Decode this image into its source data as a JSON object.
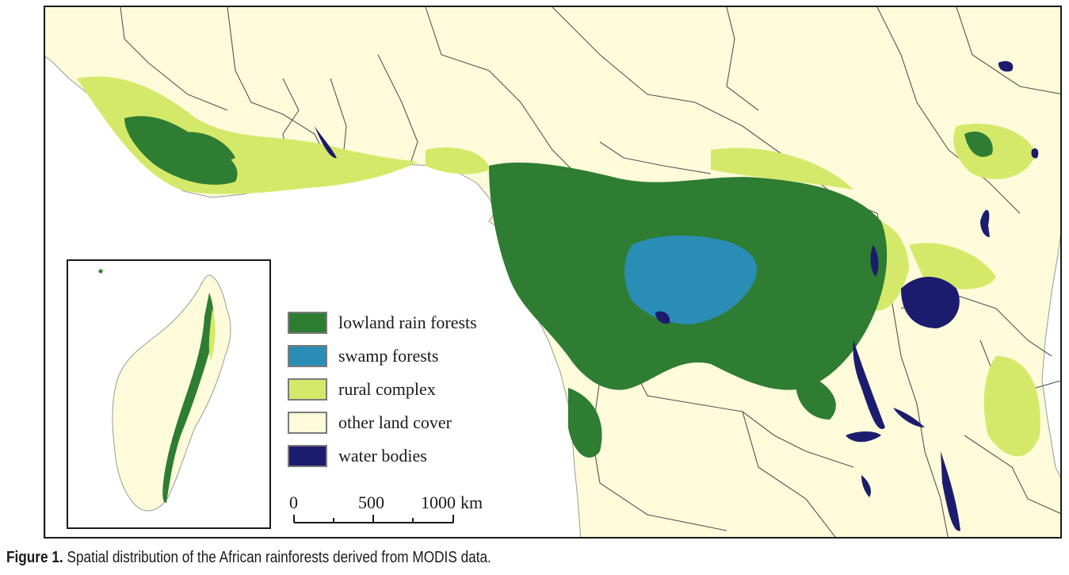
{
  "legend": {
    "items": [
      {
        "label": "lowland rain forests",
        "color": "#2e7d32"
      },
      {
        "label": "swamp forests",
        "color": "#2a8db5"
      },
      {
        "label": "rural complex",
        "color": "#d4e96a"
      },
      {
        "label": "other land cover",
        "color": "#fdfbd9"
      },
      {
        "label": "water bodies",
        "color": "#1c1c6e"
      }
    ]
  },
  "scalebar": {
    "ticks": [
      "0",
      "500",
      "1000"
    ],
    "unit": "km"
  },
  "caption": {
    "label": "Figure 1.",
    "text": "Spatial distribution of the African rainforests derived from MODIS data."
  },
  "colors": {
    "ocean": "#ffffff",
    "land": "#fdfbd9",
    "borders": "#555555"
  }
}
